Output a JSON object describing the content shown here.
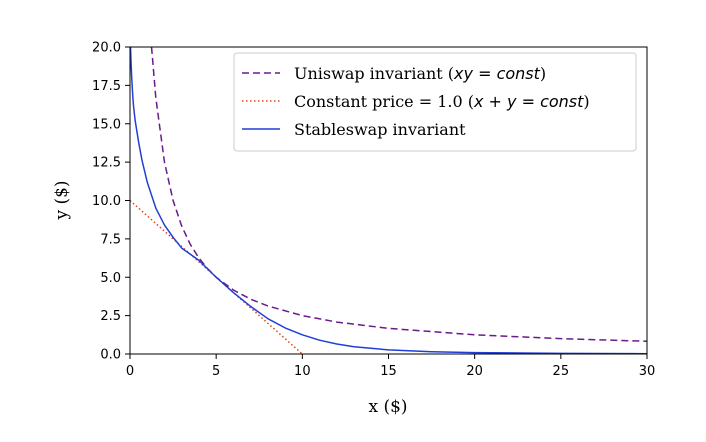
{
  "chart_data": {
    "type": "line",
    "xlabel": "x ($)",
    "ylabel": "y ($)",
    "xlim": [
      0,
      30
    ],
    "ylim": [
      0,
      20
    ],
    "x_ticks": [
      "0",
      "5",
      "10",
      "15",
      "20",
      "25",
      "30"
    ],
    "y_ticks": [
      "0.0",
      "2.5",
      "5.0",
      "7.5",
      "10.0",
      "12.5",
      "15.0",
      "17.5",
      "20.0"
    ],
    "grid": false,
    "legend_position": "top-right",
    "series": [
      {
        "name": "Uniswap invariant (xy = const)",
        "legend_prefix": "Uniswap invariant (",
        "legend_math": "xy = const",
        "legend_suffix": ")",
        "color": "#6a1b8a",
        "style": "dashed",
        "x": [
          1.25,
          1.5,
          2,
          2.5,
          3,
          3.5,
          4,
          4.5,
          5,
          6,
          7,
          8,
          10,
          12,
          15,
          20,
          25,
          30
        ],
        "y": [
          20.0,
          16.67,
          12.5,
          10.0,
          8.33,
          7.14,
          6.25,
          5.56,
          5.0,
          4.17,
          3.57,
          3.13,
          2.5,
          2.08,
          1.67,
          1.25,
          1.0,
          0.83
        ]
      },
      {
        "name": "Constant price = 1.0 (x + y = const)",
        "legend_prefix": "Constant price = 1.0 (",
        "legend_math": "x + y = const",
        "legend_suffix": ")",
        "color": "#e8401c",
        "style": "dotted",
        "x": [
          0,
          10
        ],
        "y": [
          10,
          0
        ]
      },
      {
        "name": "Stableswap invariant",
        "legend_prefix": "Stableswap invariant",
        "legend_math": "",
        "legend_suffix": "",
        "color": "#1f3fd8",
        "style": "solid",
        "x": [
          0.03,
          0.06,
          0.1,
          0.15,
          0.2,
          0.3,
          0.4,
          0.5,
          0.7,
          1.0,
          1.5,
          2.0,
          2.5,
          3.0,
          4.0,
          5.0,
          6.0,
          7.0,
          8.0,
          9.0,
          10.0,
          11.0,
          12.0,
          13.0,
          15.0,
          17.5,
          20.0,
          25.0,
          30.0
        ],
        "y": [
          20.0,
          19.0,
          18.0,
          17.0,
          16.2,
          15.2,
          14.5,
          13.8,
          12.6,
          11.2,
          9.5,
          8.4,
          7.6,
          6.9,
          6.1,
          5.0,
          4.0,
          3.1,
          2.3,
          1.7,
          1.25,
          0.9,
          0.65,
          0.47,
          0.27,
          0.15,
          0.09,
          0.04,
          0.02
        ]
      }
    ]
  }
}
